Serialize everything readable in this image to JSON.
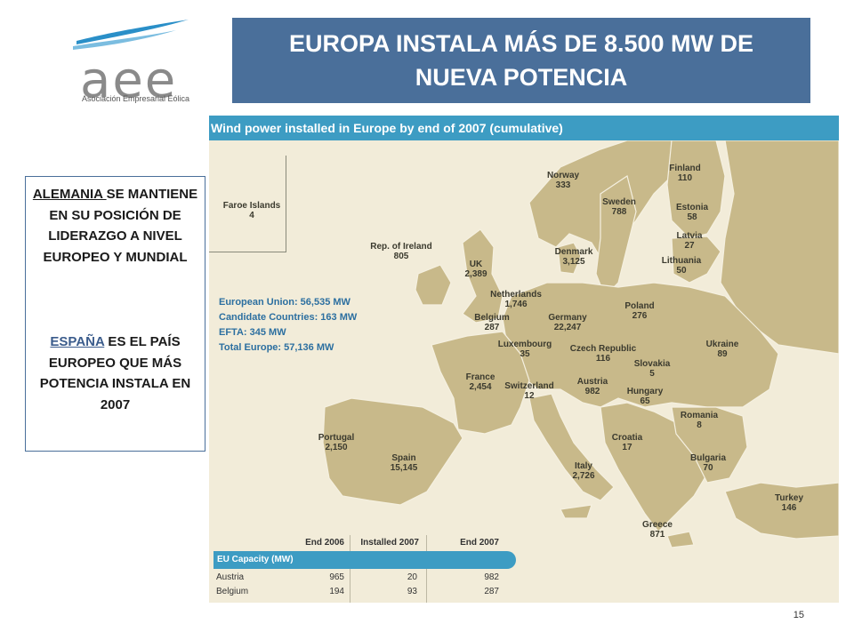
{
  "logo": {
    "wordmark": "aee",
    "subtitle": "Asociación Empresarial Eólica"
  },
  "title": "EUROPA INSTALA MÁS DE 8.500 MW DE NUEVA POTENCIA",
  "callout": {
    "p1_underlined": "ALEMANIA ",
    "p1_rest": "SE MANTIENE EN SU POSICIÓN DE LIDERAZGO A NIVEL EUROPEO Y MUNDIAL",
    "p2_highlight": "ESPAÑA",
    "p2_rest": " ES EL PAÍS EUROPEO QUE MÁS POTENCIA INSTALA EN 2007"
  },
  "map": {
    "header": "Wind power installed in Europe by end of 2007 (cumulative)",
    "totals": [
      "European Union: 56,535 MW",
      "Candidate Countries: 163 MW",
      "EFTA: 345 MW",
      "Total Europe: 57,136 MW"
    ],
    "countries": [
      {
        "name": "Faroe Islands",
        "value": "4"
      },
      {
        "name": "Norway",
        "value": "333"
      },
      {
        "name": "Finland",
        "value": "110"
      },
      {
        "name": "Sweden",
        "value": "788"
      },
      {
        "name": "Estonia",
        "value": "58"
      },
      {
        "name": "Latvia",
        "value": "27"
      },
      {
        "name": "Rep. of Ireland",
        "value": "805"
      },
      {
        "name": "Denmark",
        "value": "3,125"
      },
      {
        "name": "Lithuania",
        "value": "50"
      },
      {
        "name": "UK",
        "value": "2,389"
      },
      {
        "name": "Netherlands",
        "value": "1,746"
      },
      {
        "name": "Poland",
        "value": "276"
      },
      {
        "name": "Belgium",
        "value": "287"
      },
      {
        "name": "Germany",
        "value": "22,247"
      },
      {
        "name": "Luxembourg",
        "value": "35"
      },
      {
        "name": "Czech Republic",
        "value": "116"
      },
      {
        "name": "Ukraine",
        "value": "89"
      },
      {
        "name": "Slovakia",
        "value": "5"
      },
      {
        "name": "France",
        "value": "2,454"
      },
      {
        "name": "Switzerland",
        "value": "12"
      },
      {
        "name": "Austria",
        "value": "982"
      },
      {
        "name": "Hungary",
        "value": "65"
      },
      {
        "name": "Romania",
        "value": "8"
      },
      {
        "name": "Portugal",
        "value": "2,150"
      },
      {
        "name": "Croatia",
        "value": "17"
      },
      {
        "name": "Spain",
        "value": "15,145"
      },
      {
        "name": "Bulgaria",
        "value": "70"
      },
      {
        "name": "Italy",
        "value": "2,726"
      },
      {
        "name": "Turkey",
        "value": "146"
      },
      {
        "name": "Greece",
        "value": "871"
      }
    ],
    "table": {
      "columns": [
        "End 2006",
        "Installed 2007",
        "End 2007"
      ],
      "section": "EU Capacity (MW)",
      "rows": [
        {
          "country": "Austria",
          "end2006": "965",
          "installed2007": "20",
          "end2007": "982"
        },
        {
          "country": "Belgium",
          "end2006": "194",
          "installed2007": "93",
          "end2007": "287"
        }
      ]
    }
  },
  "page_number": "15",
  "colors": {
    "title_bg": "#4a6f9a",
    "map_header": "#3d9cc3",
    "land": "#c8b98a",
    "sea": "#f2ecd9"
  }
}
